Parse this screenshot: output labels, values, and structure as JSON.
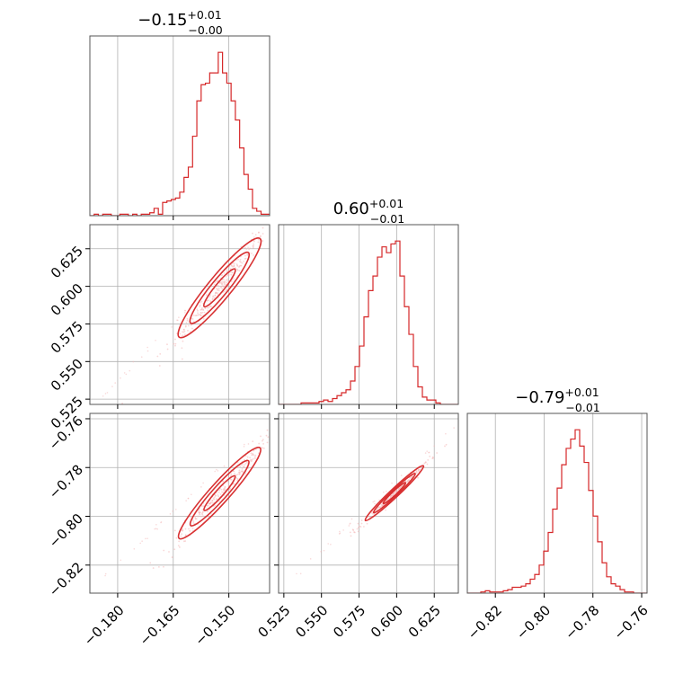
{
  "chart_data": {
    "type": "corner",
    "color": "#d62728",
    "parameters": [
      {
        "id": "p0",
        "title_value": "−0.15",
        "title_plus": "+0.01",
        "title_minus": "−0.00",
        "range": [
          -0.1875,
          -0.139
        ],
        "ticks": [
          -0.18,
          -0.165,
          -0.15
        ],
        "tick_labels": [
          "−0.180",
          "−0.165",
          "−0.150"
        ]
      },
      {
        "id": "p1",
        "title_value": "0.60",
        "title_plus": "+0.01",
        "title_minus": "−0.01",
        "range": [
          0.5215,
          0.641
        ],
        "ticks": [
          0.525,
          0.55,
          0.575,
          0.6,
          0.625
        ],
        "tick_labels": [
          "0.525",
          "0.550",
          "0.575",
          "0.600",
          "0.625"
        ]
      },
      {
        "id": "p2",
        "title_value": "−0.79",
        "title_plus": "+0.01",
        "title_minus": "−0.01",
        "range": [
          -0.8315,
          -0.7578
        ],
        "ticks": [
          -0.82,
          -0.8,
          -0.78,
          -0.76
        ],
        "tick_labels": [
          "−0.82",
          "−0.80",
          "−0.78",
          "−0.76"
        ]
      }
    ],
    "histograms": [
      {
        "param": 0,
        "counts": [
          0,
          1,
          0,
          1,
          1,
          0,
          0,
          1,
          1,
          0,
          1,
          0,
          1,
          1,
          2,
          5,
          1,
          9,
          10,
          11,
          12,
          16,
          26,
          33,
          54,
          78,
          89,
          90,
          97,
          97,
          111,
          97,
          90,
          78,
          65,
          46,
          28,
          18,
          5,
          3,
          1,
          1
        ]
      },
      {
        "param": 1,
        "counts": [
          0,
          0,
          0,
          0,
          0,
          1,
          1,
          1,
          1,
          2,
          3,
          2,
          4,
          6,
          8,
          10,
          16,
          26,
          40,
          60,
          78,
          88,
          101,
          108,
          104,
          110,
          112,
          88,
          67,
          48,
          26,
          12,
          5,
          3,
          3,
          1,
          0,
          0,
          0,
          0
        ]
      },
      {
        "param": 2,
        "counts": [
          0,
          0,
          0,
          1,
          2,
          1,
          1,
          1,
          2,
          3,
          5,
          5,
          6,
          8,
          12,
          16,
          24,
          36,
          52,
          72,
          90,
          110,
          124,
          132,
          140,
          126,
          112,
          88,
          66,
          44,
          26,
          14,
          8,
          6,
          3,
          1,
          1,
          0,
          0,
          0
        ]
      }
    ],
    "pairs": [
      {
        "x": 0,
        "y": 1,
        "center": [
          -0.1525,
          0.599
        ],
        "sigma_x": 0.0052,
        "rho": 0.965,
        "slope": 3.0,
        "tail": [
          [
            -0.1845,
            0.526
          ],
          [
            -0.1405,
            0.635
          ]
        ]
      },
      {
        "x": 0,
        "y": 2,
        "center": [
          -0.1525,
          -0.7905
        ],
        "sigma_x": 0.0052,
        "rho": 0.97,
        "slope": 1.7,
        "tail": [
          [
            -0.1835,
            -0.8245
          ],
          [
            -0.1405,
            -0.7635
          ]
        ]
      },
      {
        "x": 1,
        "y": 2,
        "center": [
          0.5985,
          -0.7905
        ],
        "sigma_x": 0.0092,
        "rho": 0.985,
        "slope": 0.58,
        "tail": [
          [
            0.5325,
            -0.8245
          ],
          [
            0.638,
            -0.7635
          ]
        ]
      }
    ]
  }
}
